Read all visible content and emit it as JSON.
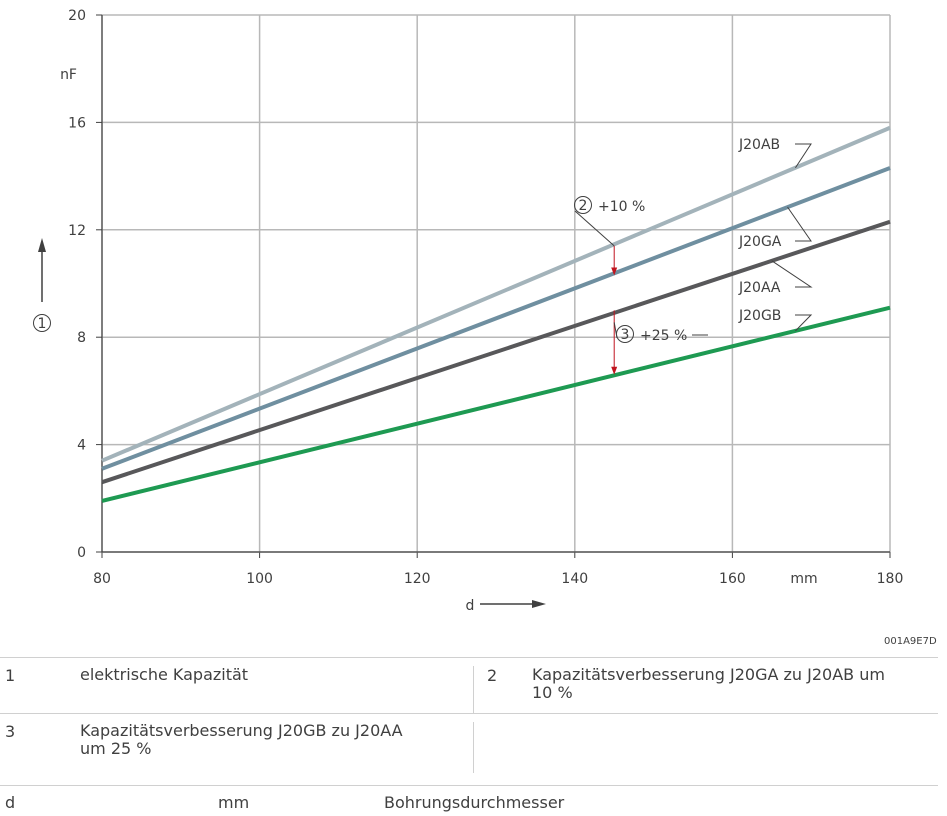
{
  "chart_data": {
    "type": "line",
    "xlabel": "d",
    "xunit": "mm",
    "yunit": "nF",
    "ylabel_callout": "1",
    "xlim": [
      80,
      180
    ],
    "ylim": [
      0,
      20
    ],
    "x_ticks": [
      80,
      100,
      120,
      140,
      160,
      180
    ],
    "y_ticks": [
      0,
      4,
      8,
      12,
      16,
      20
    ],
    "grid": true,
    "series": [
      {
        "name": "J20AB",
        "color": "#a3b3ba",
        "x": [
          80,
          180
        ],
        "y": [
          3.4,
          15.8
        ]
      },
      {
        "name": "J20GA",
        "color": "#6f8fa0",
        "x": [
          80,
          180
        ],
        "y": [
          3.1,
          14.3
        ]
      },
      {
        "name": "J20AA",
        "color": "#58585a",
        "x": [
          80,
          180
        ],
        "y": [
          2.6,
          12.3
        ]
      },
      {
        "name": "J20GB",
        "color": "#1e9a52",
        "x": [
          80,
          180
        ],
        "y": [
          1.9,
          9.1
        ]
      }
    ],
    "annotations": [
      {
        "callout": "2",
        "text": "+10 %",
        "x": 145,
        "y_from": 11.4,
        "y_to": 10.3,
        "color": "#c0141e"
      },
      {
        "callout": "3",
        "text": "+25 %",
        "x": 145,
        "y_from": 9.0,
        "y_to": 6.6,
        "color": "#c0141e"
      }
    ]
  },
  "figure_code": "001A9E7D",
  "legend": [
    [
      {
        "num": "1",
        "text": "elektrische Kapazität"
      },
      {
        "num": "2",
        "text": "Kapazitätsverbesserung J20GA zu J20AB um 10 %"
      }
    ],
    [
      {
        "num": "3",
        "text": "Kapazitätsverbesserung J20GB zu J20AA um 25 %"
      },
      {
        "num": "",
        "text": ""
      }
    ]
  ],
  "definition": {
    "symbol": "d",
    "unit": "mm",
    "text": "Bohrungsdurchmesser"
  }
}
